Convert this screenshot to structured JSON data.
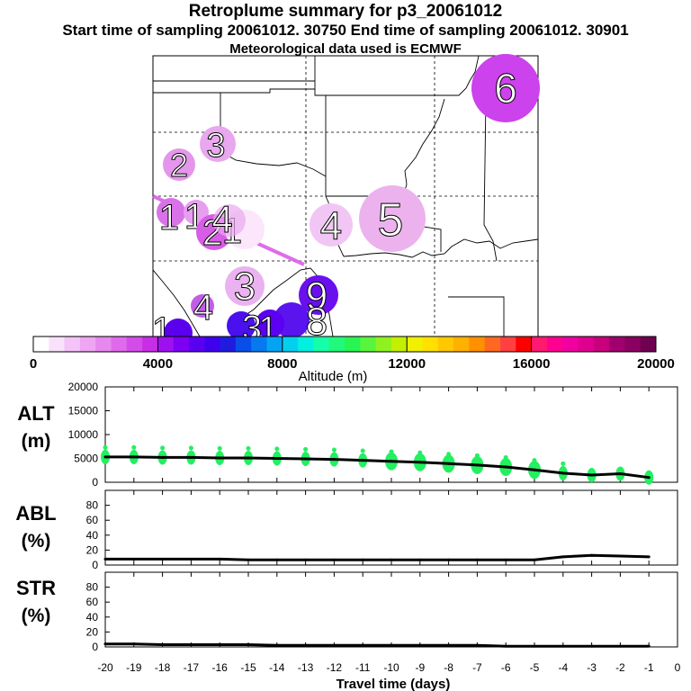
{
  "header": {
    "title": "Retroplume summary for p3_20061012",
    "subtitle": "Start time of sampling 20061012. 30750     End time of sampling 20061012. 30901",
    "met_line": "Meteorological data used is ECMWF"
  },
  "colorbar": {
    "label": "Altitude (m)",
    "ticks": [
      0,
      4000,
      8000,
      12000,
      16000,
      20000
    ],
    "colors": [
      "#ffffff",
      "#f9e1fb",
      "#f4c3f7",
      "#eea6f3",
      "#e788ef",
      "#df6aeb",
      "#d44ce8",
      "#c72ee6",
      "#9e11ef",
      "#7c00f2",
      "#5a00f0",
      "#3f00ee",
      "#1f1ce0",
      "#0a4ee8",
      "#0878ef",
      "#04a4f2",
      "#05cfee",
      "#03f0e0",
      "#14ffa7",
      "#20f97b",
      "#27f552",
      "#58f53c",
      "#8ff21f",
      "#c2f000",
      "#f0f000",
      "#ffe000",
      "#ffc800",
      "#ffb000",
      "#ff9000",
      "#ff6820",
      "#ff4040",
      "#ff0000",
      "#ff1a70",
      "#ff0090",
      "#f000a0",
      "#e00090",
      "#c8007e",
      "#a0006e",
      "#8a0060",
      "#700050"
    ]
  },
  "map": {
    "labels": [
      {
        "day": "6",
        "color": "#cc42ec"
      },
      {
        "day": "5",
        "color": "#ecb2ee"
      },
      {
        "day": "4",
        "color": "#f1c6f4"
      },
      {
        "day": "3",
        "color": "#e8a7ee"
      },
      {
        "day": "2",
        "color": "#e496ec"
      },
      {
        "day": "1",
        "color": "#d972e8"
      },
      {
        "day": "1",
        "color": "#e89ef0"
      },
      {
        "day": "2",
        "color": "#d85de6"
      },
      {
        "day": "1",
        "color": "#fbe6fb"
      },
      {
        "day": "4",
        "color": "#e9a8f0"
      },
      {
        "day": "3",
        "color": "#eab2f1"
      },
      {
        "day": "4",
        "color": "#c15ee8"
      },
      {
        "day": "9",
        "color": "#6a10ee"
      },
      {
        "day": "8",
        "color": "#5a14ee"
      },
      {
        "day": "1",
        "color": "#5a00ee"
      },
      {
        "day": "1",
        "color": "#5b00f0"
      },
      {
        "day": "3",
        "color": "#4a10ee"
      }
    ]
  },
  "panels": [
    {
      "name": "ALT",
      "unit": "(m)",
      "ticks": [
        0,
        5000,
        10000,
        15000,
        20000
      ],
      "ylim": [
        0,
        20000
      ]
    },
    {
      "name": "ABL",
      "unit": "(%)",
      "ticks": [
        0,
        20,
        40,
        60,
        80
      ],
      "ylim": [
        0,
        100
      ]
    },
    {
      "name": "STR",
      "unit": "(%)",
      "ticks": [
        0,
        20,
        40,
        60,
        80
      ],
      "ylim": [
        0,
        100
      ]
    }
  ],
  "chart_data": {
    "type": "line",
    "title": "Retroplume summary for p3_20061012",
    "xlabel": "Travel time (days)",
    "xlim": [
      -20,
      0
    ],
    "x_ticks": [
      -20,
      -19,
      -18,
      -17,
      -16,
      -15,
      -14,
      -13,
      -12,
      -11,
      -10,
      -9,
      -8,
      -7,
      -6,
      -5,
      -4,
      -3,
      -2,
      -1,
      0
    ],
    "x": [
      -20,
      -19,
      -18,
      -17,
      -16,
      -15,
      -14,
      -13,
      -12,
      -11,
      -10,
      -9,
      -8,
      -7,
      -6,
      -5,
      -4,
      -3,
      -2,
      -1
    ],
    "series": [
      {
        "name": "ALT mean (m)",
        "panel": "ALT",
        "values": [
          5300,
          5300,
          5200,
          5200,
          5100,
          5100,
          5000,
          4900,
          4800,
          4600,
          4400,
          4200,
          3900,
          3600,
          3200,
          2600,
          1900,
          1500,
          1800,
          1000
        ]
      },
      {
        "name": "ABL (%)",
        "panel": "ABL",
        "values": [
          8,
          8,
          8,
          8,
          8,
          7,
          7,
          7,
          7,
          7,
          7,
          7,
          7,
          7,
          7,
          7,
          11,
          13,
          12,
          11
        ]
      },
      {
        "name": "STR (%)",
        "panel": "STR",
        "values": [
          4,
          4,
          3,
          3,
          3,
          3,
          2,
          2,
          2,
          2,
          2,
          2,
          2,
          2,
          1,
          1,
          1,
          1,
          1,
          1
        ]
      }
    ]
  }
}
